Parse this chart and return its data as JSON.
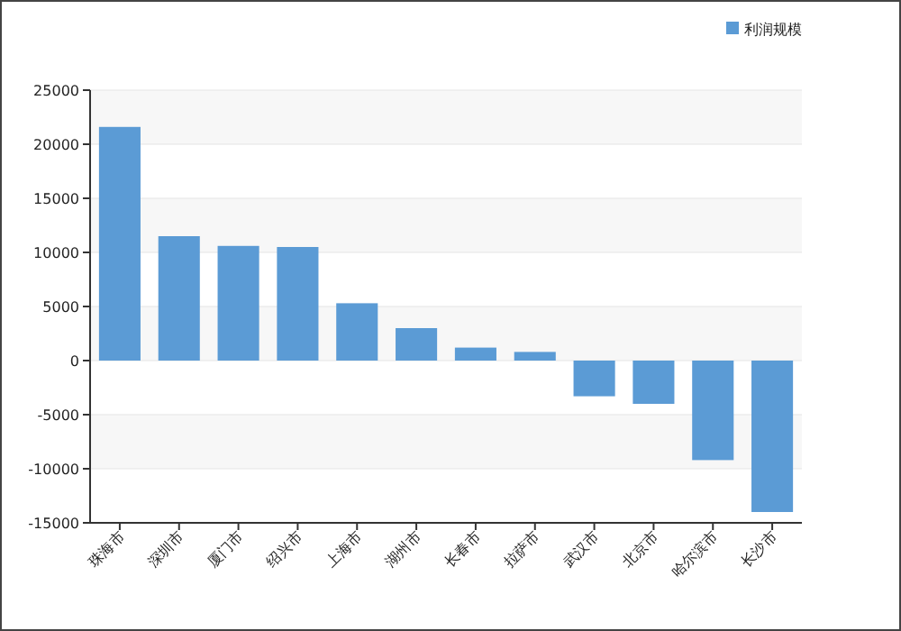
{
  "chart_data": {
    "type": "bar",
    "categories": [
      "珠海市",
      "深圳市",
      "厦门市",
      "绍兴市",
      "上海市",
      "湖州市",
      "长春市",
      "拉萨市",
      "武汉市",
      "北京市",
      "哈尔滨市",
      "长沙市"
    ],
    "series": [
      {
        "name": "利润规模",
        "color": "#5b9bd5",
        "values": [
          21600,
          11500,
          10600,
          10500,
          5300,
          3000,
          1200,
          800,
          -3300,
          -4000,
          -9200,
          -14000
        ]
      }
    ],
    "ylim": [
      -15000,
      25000
    ],
    "yticks": [
      -15000,
      -10000,
      -5000,
      0,
      5000,
      10000,
      15000,
      20000,
      25000
    ],
    "grid": "y",
    "legend": "top right"
  }
}
